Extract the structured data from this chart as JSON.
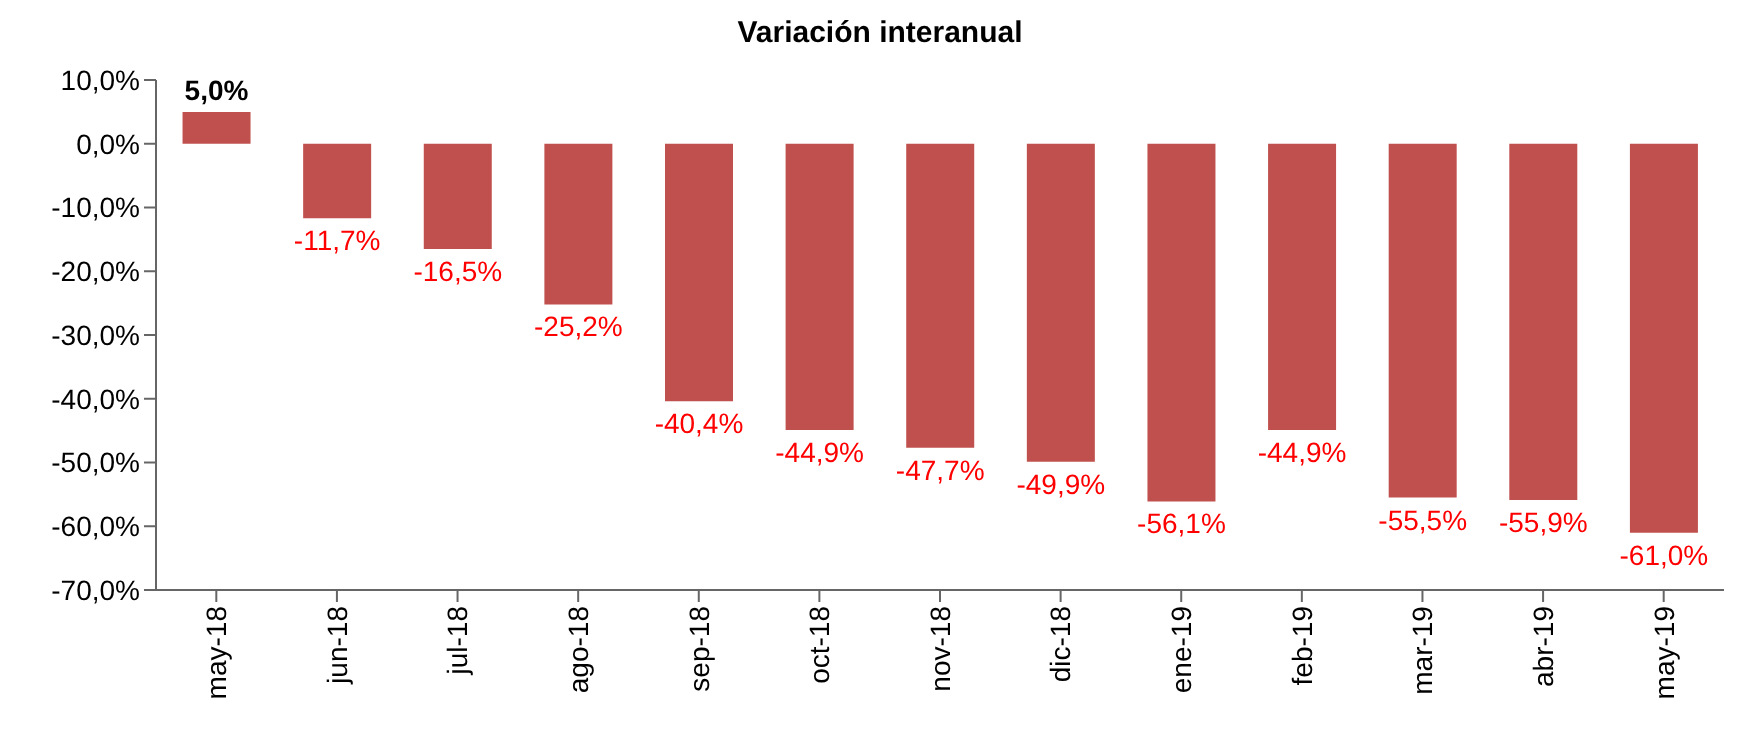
{
  "chart_data": {
    "type": "bar",
    "title": "Variación interanual",
    "categories": [
      "may-18",
      "jun-18",
      "jul-18",
      "ago-18",
      "sep-18",
      "oct-18",
      "nov-18",
      "dic-18",
      "ene-19",
      "feb-19",
      "mar-19",
      "abr-19",
      "may-19"
    ],
    "values": [
      5.0,
      -11.7,
      -16.5,
      -25.2,
      -40.4,
      -44.9,
      -47.7,
      -49.9,
      -56.1,
      -44.9,
      -55.5,
      -55.9,
      -61.0
    ],
    "value_labels": [
      "5,0%",
      "-11,7%",
      "-16,5%",
      "-25,2%",
      "-40,4%",
      "-44,9%",
      "-47,7%",
      "-49,9%",
      "-56,1%",
      "-44,9%",
      "-55,5%",
      "-55,9%",
      "-61,0%"
    ],
    "color": "#c0504d",
    "ylim": [
      -70,
      10
    ],
    "yticks": [
      {
        "value": 10,
        "label": "10,0%"
      },
      {
        "value": 0,
        "label": "0,0%"
      },
      {
        "value": -10,
        "label": "-10,0%"
      },
      {
        "value": -20,
        "label": "-20,0%"
      },
      {
        "value": -30,
        "label": "-30,0%"
      },
      {
        "value": -40,
        "label": "-40,0%"
      },
      {
        "value": -50,
        "label": "-50,0%"
      },
      {
        "value": -60,
        "label": "-60,0%"
      },
      {
        "value": -70,
        "label": "-70,0%"
      }
    ],
    "grid": false,
    "legend": false
  }
}
